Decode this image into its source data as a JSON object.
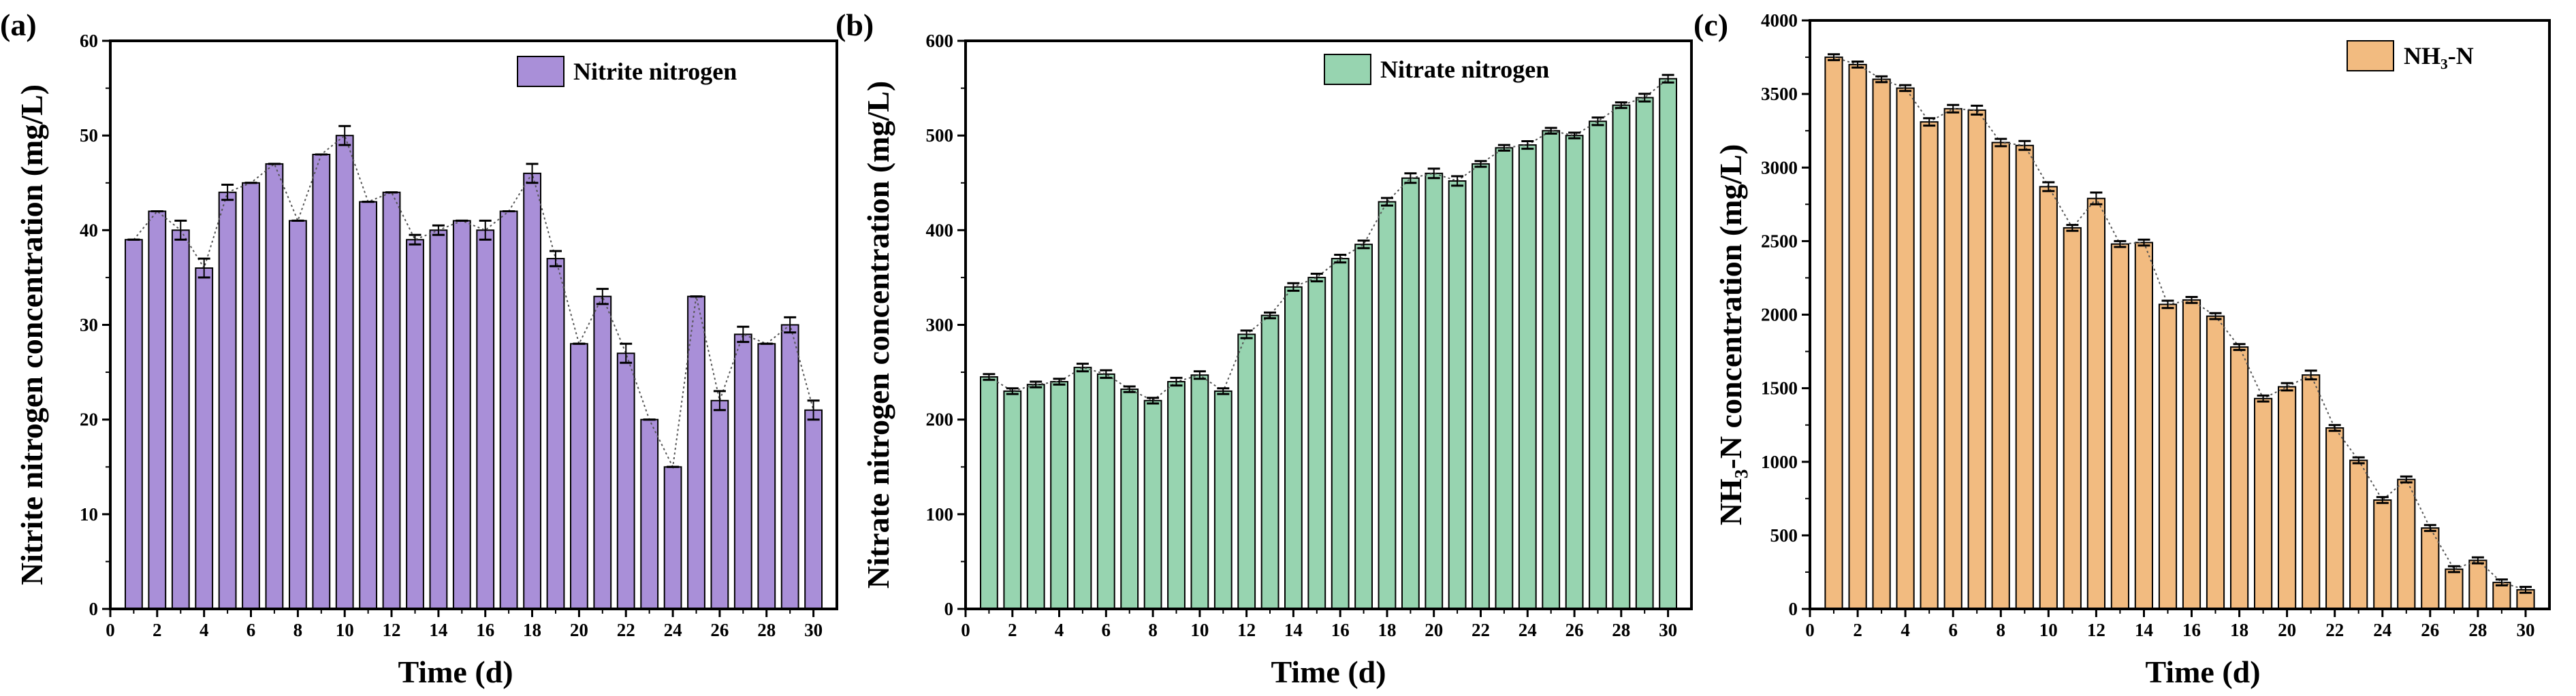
{
  "panels": [
    {
      "tag": "(a)",
      "legend": "Nitrite nitrogen",
      "color": "#a98fd8",
      "chart_data": {
        "type": "bar",
        "title": "",
        "xlabel": "Time (d)",
        "ylabel": "Nitrite nitrogen concentration (mg/L)",
        "x": [
          1,
          2,
          3,
          4,
          5,
          6,
          7,
          8,
          9,
          10,
          11,
          12,
          13,
          14,
          15,
          16,
          17,
          18,
          19,
          20,
          21,
          22,
          23,
          24,
          25,
          26,
          27,
          28,
          29,
          30
        ],
        "values": [
          39,
          42,
          40,
          36,
          44,
          45,
          47,
          41,
          48,
          50,
          43,
          44,
          39,
          40,
          41,
          40,
          42,
          46,
          37,
          28,
          33,
          27,
          20,
          15,
          33,
          22,
          29,
          28,
          30,
          21
        ],
        "errors": [
          0,
          0,
          1,
          1,
          0.8,
          0,
          0,
          0,
          0,
          1,
          0,
          0,
          0.5,
          0.5,
          0,
          1,
          0,
          1,
          0.8,
          0,
          0.8,
          1,
          0,
          0,
          0,
          1,
          0.8,
          0,
          0.8,
          1
        ],
        "xlim": [
          0,
          31
        ],
        "ylim": [
          0,
          60
        ],
        "xticks": [
          "0",
          "2",
          "4",
          "6",
          "8",
          "10",
          "12",
          "14",
          "16",
          "18",
          "20",
          "22",
          "24",
          "26",
          "28",
          "30"
        ],
        "yticks": [
          "0",
          "10",
          "20",
          "30",
          "40",
          "50",
          "60"
        ],
        "legend_position": "top-right"
      }
    },
    {
      "tag": "(b)",
      "legend": "Nitrate nitrogen",
      "color": "#97d4b0",
      "chart_data": {
        "type": "bar",
        "title": "",
        "xlabel": "Time (d)",
        "ylabel": "Nitrate nitrogen concentration (mg/L)",
        "x": [
          1,
          2,
          3,
          4,
          5,
          6,
          7,
          8,
          9,
          10,
          11,
          12,
          13,
          14,
          15,
          16,
          17,
          18,
          19,
          20,
          21,
          22,
          23,
          24,
          25,
          26,
          27,
          28,
          29,
          30
        ],
        "values": [
          245,
          230,
          237,
          240,
          255,
          248,
          232,
          220,
          240,
          247,
          230,
          290,
          310,
          340,
          350,
          370,
          385,
          430,
          455,
          460,
          452,
          470,
          487,
          490,
          505,
          500,
          515,
          532,
          540,
          560
        ],
        "errors": [
          3,
          3,
          3,
          3,
          4,
          4,
          3,
          3,
          4,
          4,
          3,
          4,
          3,
          4,
          4,
          4,
          4,
          4,
          5,
          5,
          5,
          3,
          3,
          4,
          3,
          3,
          4,
          3,
          4,
          4
        ],
        "xlim": [
          0,
          31
        ],
        "ylim": [
          0,
          600
        ],
        "xticks": [
          "0",
          "2",
          "4",
          "6",
          "8",
          "10",
          "12",
          "14",
          "16",
          "18",
          "20",
          "22",
          "24",
          "26",
          "28",
          "30"
        ],
        "yticks": [
          "0",
          "100",
          "200",
          "300",
          "400",
          "500",
          "600"
        ],
        "legend_position": "top-right"
      }
    },
    {
      "tag": "(c)",
      "legend": "NH₃-N",
      "color": "#f2bb80",
      "chart_data": {
        "type": "bar",
        "title": "",
        "xlabel": "Time (d)",
        "ylabel": "NH₃-N concentration (mg/L)",
        "x": [
          1,
          2,
          3,
          4,
          5,
          6,
          7,
          8,
          9,
          10,
          11,
          12,
          13,
          14,
          15,
          16,
          17,
          18,
          19,
          20,
          21,
          22,
          23,
          24,
          25,
          26,
          27,
          28,
          29,
          30
        ],
        "values": [
          3750,
          3700,
          3600,
          3540,
          3310,
          3400,
          3390,
          3170,
          3150,
          2870,
          2590,
          2790,
          2480,
          2490,
          2070,
          2100,
          1990,
          1780,
          1430,
          1510,
          1590,
          1230,
          1010,
          740,
          880,
          550,
          270,
          330,
          180,
          130
        ],
        "errors": [
          20,
          20,
          20,
          20,
          25,
          25,
          30,
          25,
          30,
          30,
          20,
          40,
          20,
          20,
          25,
          20,
          20,
          20,
          20,
          25,
          30,
          20,
          20,
          20,
          20,
          20,
          20,
          20,
          20,
          20
        ],
        "xlim": [
          0,
          31
        ],
        "ylim": [
          0,
          4000
        ],
        "xticks": [
          "0",
          "2",
          "4",
          "6",
          "8",
          "10",
          "12",
          "14",
          "16",
          "18",
          "20",
          "22",
          "24",
          "26",
          "28",
          "30"
        ],
        "yticks": [
          "0",
          "500",
          "1000",
          "1500",
          "2000",
          "2500",
          "3000",
          "3500",
          "4000"
        ],
        "legend_position": "top-right"
      }
    }
  ]
}
